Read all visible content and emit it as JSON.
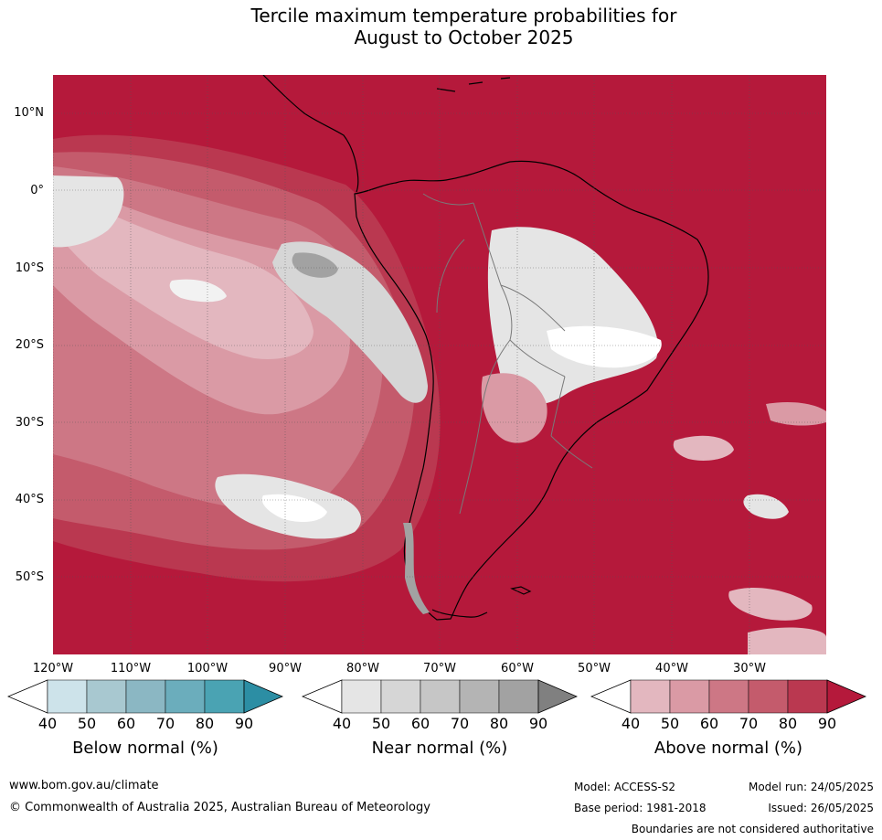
{
  "title": {
    "line1": "Tercile maximum temperature probabilities for",
    "line2": "August to October 2025"
  },
  "map": {
    "lat_labels": [
      "10°N",
      "0°",
      "10°S",
      "20°S",
      "30°S",
      "40°S",
      "50°S"
    ],
    "lon_labels": [
      "120°W",
      "110°W",
      "100°W",
      "90°W",
      "80°W",
      "70°W",
      "60°W",
      "50°W",
      "40°W",
      "30°W"
    ],
    "dominant_category": "Above normal",
    "dominant_color": "#b5193b"
  },
  "colorbars": [
    {
      "title": "Below normal (%)",
      "ticks": [
        "40",
        "50",
        "60",
        "70",
        "80",
        "90"
      ],
      "colors": [
        "#ffffff",
        "#cde3ea",
        "#a8c8d0",
        "#8bb7c3",
        "#6badbc",
        "#4aa3b3",
        "#2c8ea4"
      ]
    },
    {
      "title": "Near normal (%)",
      "ticks": [
        "40",
        "50",
        "60",
        "70",
        "80",
        "90"
      ],
      "colors": [
        "#ffffff",
        "#e5e5e5",
        "#d6d6d6",
        "#c6c6c6",
        "#b4b4b4",
        "#a2a2a2",
        "#808080"
      ]
    },
    {
      "title": "Above normal (%)",
      "ticks": [
        "40",
        "50",
        "60",
        "70",
        "80",
        "90"
      ],
      "colors": [
        "#ffffff",
        "#e3b7bf",
        "#da9aa5",
        "#cd7785",
        "#c45b6c",
        "#ba3850",
        "#b5193b"
      ]
    }
  ],
  "footer": {
    "website": "www.bom.gov.au/climate",
    "copyright": "© Commonwealth of Australia 2025, Australian Bureau of Meteorology",
    "model": "Model: ACCESS-S2",
    "model_run": "Model run: 24/05/2025",
    "base_period": "Base period: 1981-2018",
    "issued": "Issued: 26/05/2025",
    "disclaimer": "Boundaries are not considered authoritative"
  }
}
